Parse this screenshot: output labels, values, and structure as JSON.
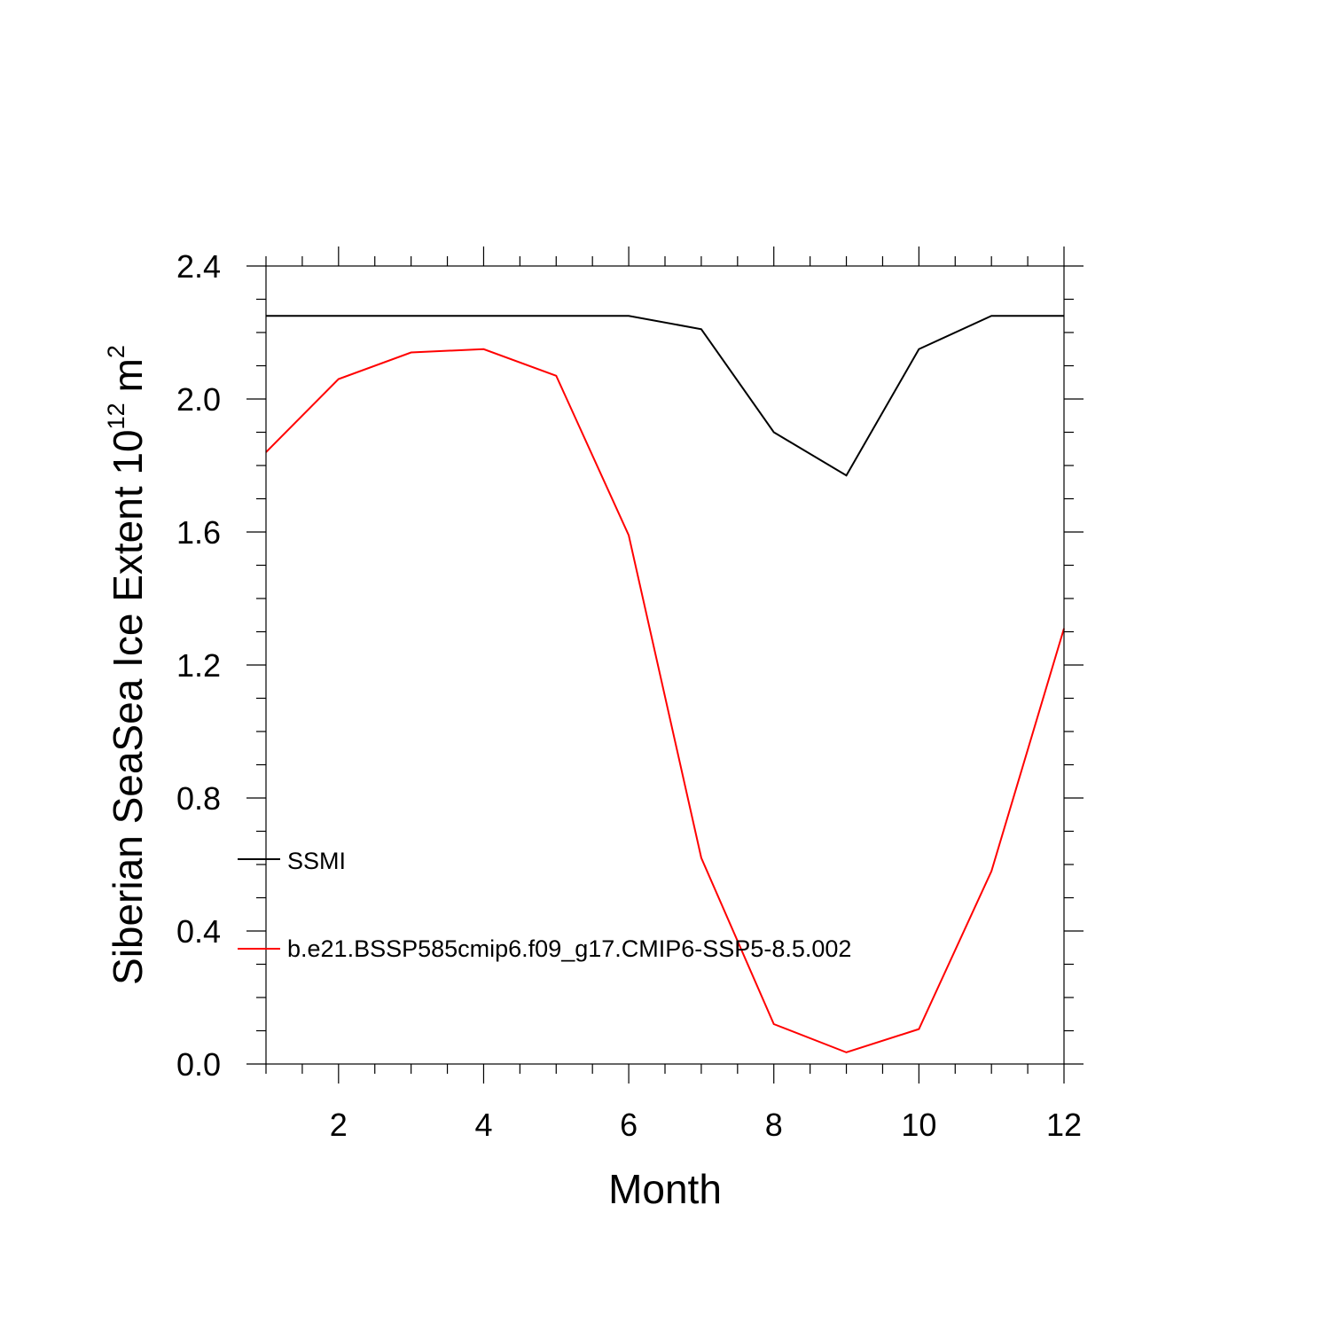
{
  "chart_data": {
    "type": "line",
    "xlabel": "Month",
    "ylabel": {
      "main": "Siberian SeaSea Ice Extent 10",
      "exponent": "12",
      "unit": "m",
      "unit_exponent": "2"
    },
    "xlim": [
      1,
      12
    ],
    "ylim": [
      0.0,
      2.4
    ],
    "x_ticks": [
      2,
      4,
      6,
      8,
      10,
      12
    ],
    "x_tick_labels": [
      "2",
      "4",
      "6",
      "8",
      "10",
      "12"
    ],
    "y_ticks": [
      0.0,
      0.4,
      0.8,
      1.2,
      1.6,
      2.0,
      2.4
    ],
    "y_tick_labels": [
      "0.0",
      "0.4",
      "0.8",
      "1.2",
      "1.6",
      "2.0",
      "2.4"
    ],
    "grid": false,
    "legend_placement": "lower-left inside",
    "x": [
      1,
      2,
      3,
      4,
      5,
      6,
      7,
      8,
      9,
      10,
      11,
      12
    ],
    "series": [
      {
        "name": "SSMI",
        "color": "#000000",
        "values": [
          2.25,
          2.25,
          2.25,
          2.25,
          2.25,
          2.25,
          2.21,
          1.9,
          1.77,
          2.15,
          2.25,
          2.25
        ]
      },
      {
        "name": "b.e21.BSSP585cmip6.f09_g17.CMIP6-SSP5-8.5.002",
        "color": "#ff0000",
        "values": [
          1.84,
          2.06,
          2.14,
          2.15,
          2.07,
          1.59,
          0.62,
          0.12,
          0.035,
          0.105,
          0.58,
          1.31
        ]
      }
    ]
  }
}
